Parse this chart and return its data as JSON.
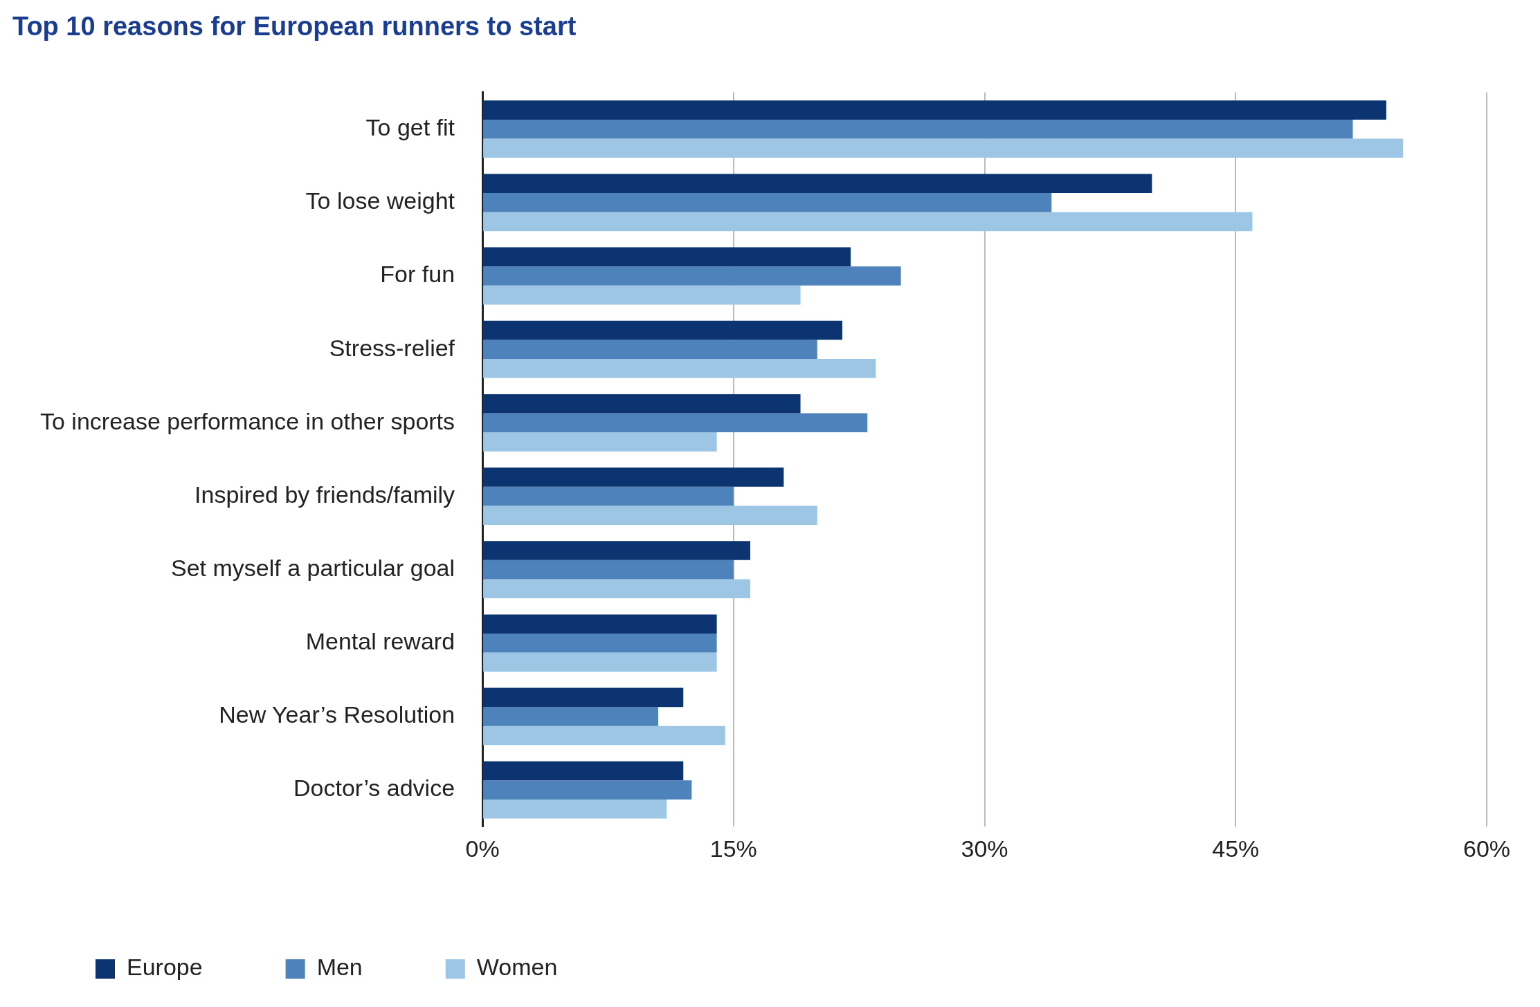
{
  "chart_data": {
    "type": "bar",
    "orientation": "horizontal",
    "title": "Top 10 reasons for European runners to start",
    "categories": [
      "To get fit",
      "To lose weight",
      "For fun",
      "Stress-relief",
      "To increase performance in other sports",
      "Inspired by friends/family",
      "Set myself a particular goal",
      "Mental reward",
      "New Year’s Resolution",
      "Doctor’s advice"
    ],
    "series": [
      {
        "name": "Europe",
        "color": "#0b3470",
        "values": [
          54,
          40,
          22,
          21.5,
          19,
          18,
          16,
          14,
          12,
          12
        ]
      },
      {
        "name": "Men",
        "color": "#4d82bb",
        "values": [
          52,
          34,
          25,
          20,
          23,
          15,
          15,
          14,
          10.5,
          12.5
        ]
      },
      {
        "name": "Women",
        "color": "#9dc6e4",
        "values": [
          55,
          46,
          19,
          23.5,
          14,
          20,
          16,
          14,
          14.5,
          11
        ]
      }
    ],
    "xlim": [
      0,
      60
    ],
    "xticks": [
      {
        "value": 0,
        "label": "0%"
      },
      {
        "value": 15,
        "label": "15%"
      },
      {
        "value": 30,
        "label": "30%"
      },
      {
        "value": 45,
        "label": "45%"
      },
      {
        "value": 60,
        "label": "60%"
      }
    ],
    "grid": "x",
    "legend": "bottom left"
  }
}
